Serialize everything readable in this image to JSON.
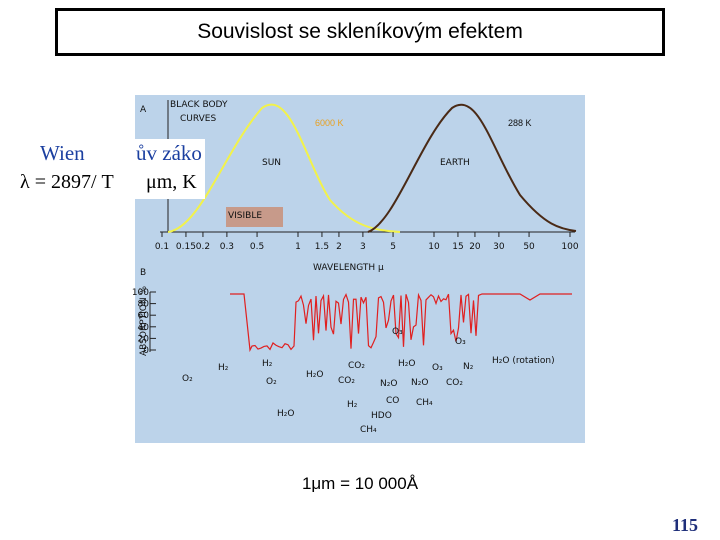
{
  "title": "Souvislost se skleníkovým efektem",
  "figure": {
    "panel_a": {
      "label": "A",
      "caption": [
        "BLACK BODY",
        "CURVES"
      ],
      "sun": "SUN",
      "earth": "EARTH",
      "sun_temperature": "6000 K",
      "earth_temperature": "288 K",
      "visible": "VISIBLE",
      "x_ticks": [
        0.1,
        0.15,
        0.2,
        0.3,
        0.5,
        1,
        1.5,
        2,
        3,
        5,
        10,
        15,
        20,
        30,
        50,
        100
      ],
      "x_label": "WAVELENGTH μ"
    },
    "panel_b": {
      "label": "B",
      "y_label": "ABSORPTION %",
      "y_ticks": [
        100,
        80,
        60,
        40,
        20,
        0
      ],
      "gases": [
        "O₂",
        "H₂",
        "H₂",
        "O₂",
        "H₂O",
        "H₂O",
        "CO₂",
        "CO₂",
        "H₂O",
        "N₂O",
        "CO",
        "H₂",
        "HDO",
        "CH₄",
        "O₃",
        "N₂O",
        "CH₄",
        "CO₂",
        "N₂",
        "O₃",
        "O₃",
        "H₂O (rotation)"
      ]
    }
  },
  "wien": {
    "heading": "Wien",
    "cut_text": "ův záko",
    "formula": "λ = 2897/ T",
    "unit": "μm, K"
  },
  "note": "1μm = 10 000Å",
  "page_number": "115"
}
